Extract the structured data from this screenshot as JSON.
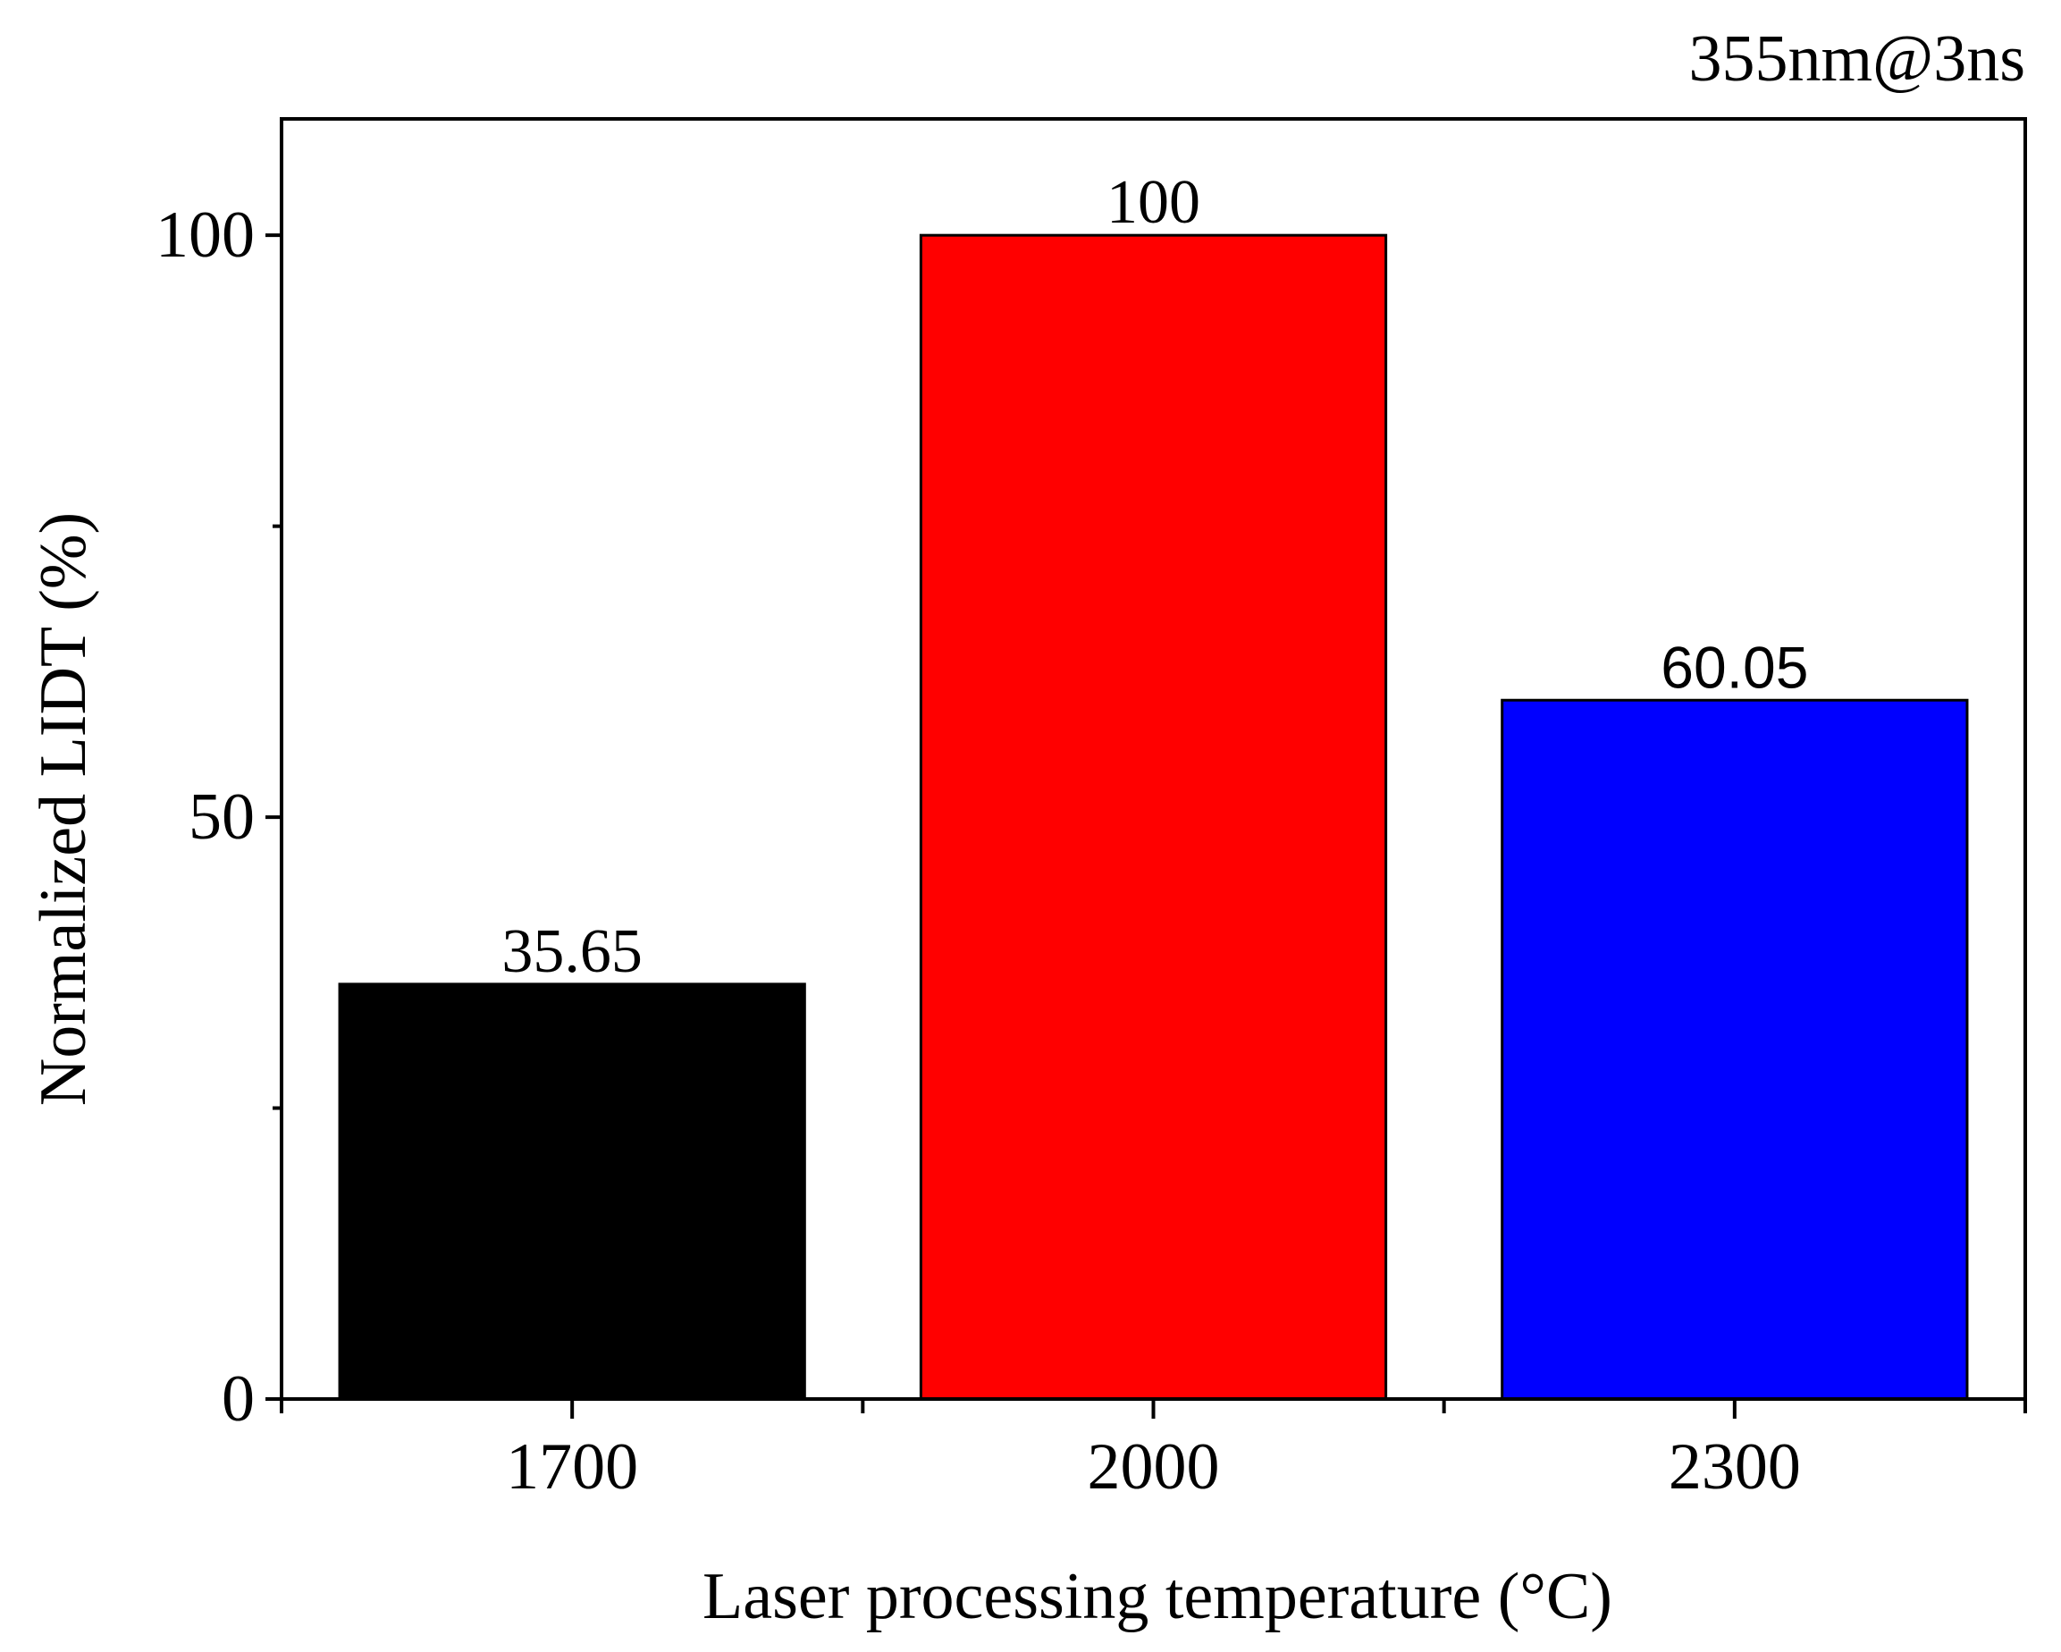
{
  "chart_data": {
    "type": "bar",
    "title": "355nm@3ns",
    "xlabel": "Laser processing temperature (°C)",
    "ylabel": "Normalized LIDT (%)",
    "categories": [
      "1700",
      "2000",
      "2300"
    ],
    "values": [
      35.65,
      100,
      60.05
    ],
    "value_labels": [
      "35.65",
      "100",
      "60.05"
    ],
    "colors": [
      "#000000",
      "#ff0000",
      "#0000ff"
    ],
    "ylim": [
      0,
      110
    ],
    "yticks": [
      0,
      50,
      100
    ],
    "ytick_labels": [
      "0",
      "50",
      "100"
    ],
    "y_minor_ticks": [
      25,
      75
    ],
    "grid": false,
    "legend": "none"
  }
}
